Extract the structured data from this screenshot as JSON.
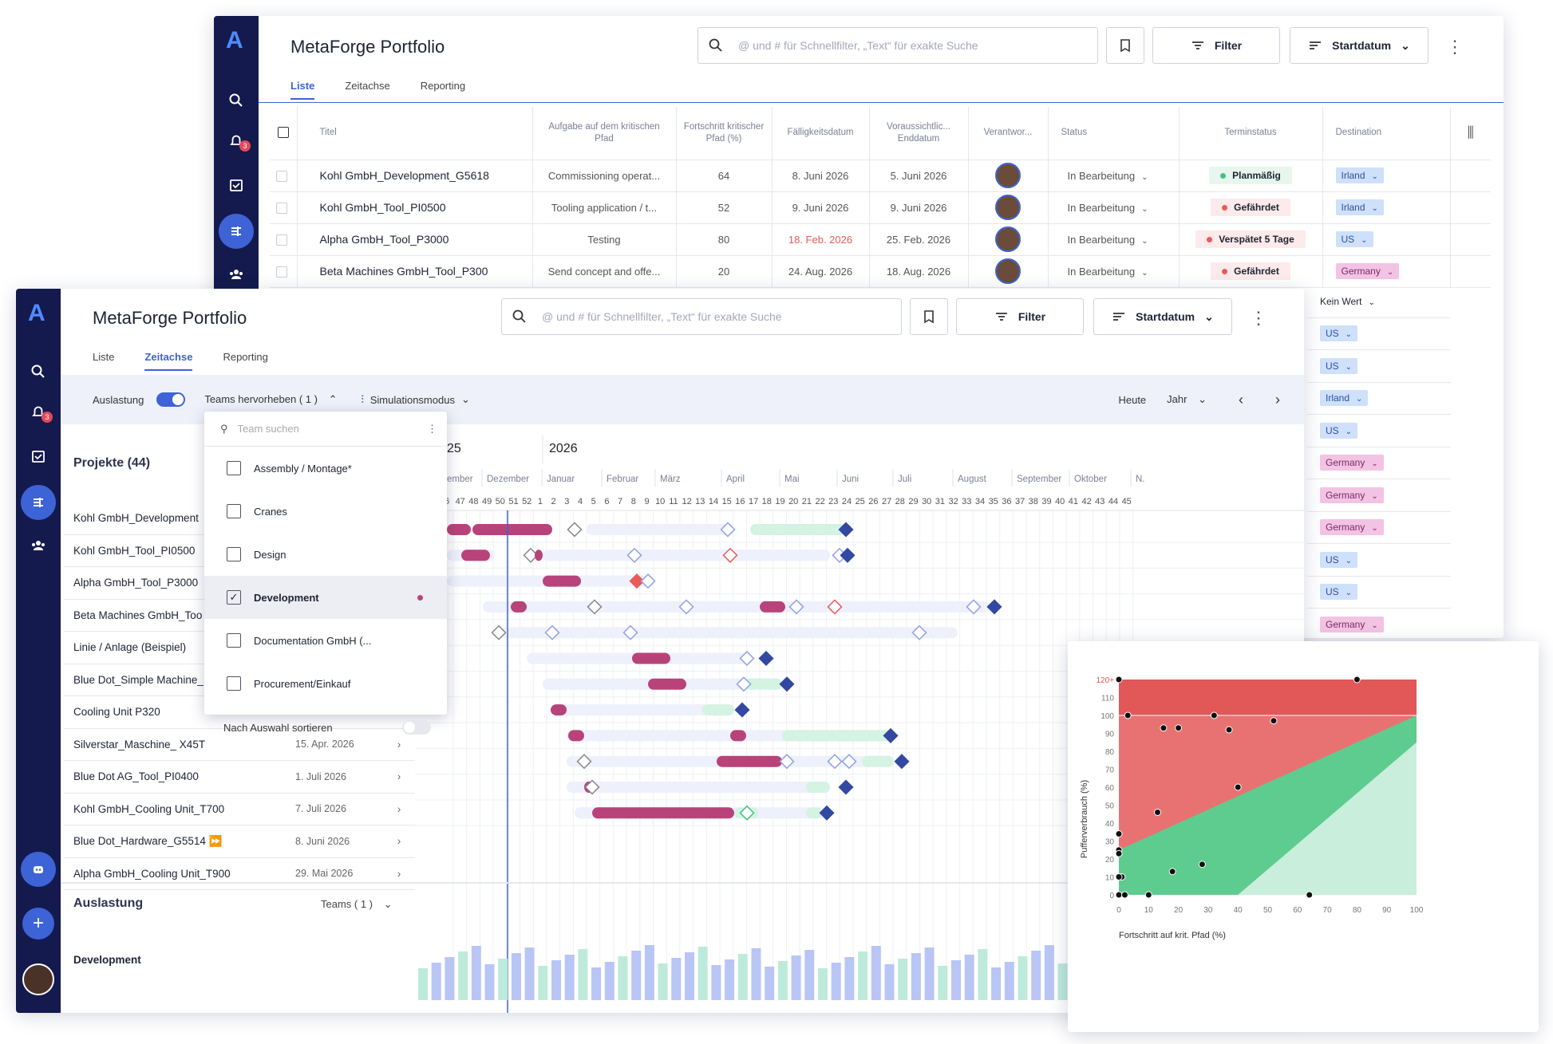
{
  "app": {
    "title": "MetaForge Portfolio",
    "search_placeholder": "@ und # für Schnellfilter, „Text“ für exakte Suche",
    "filter_label": "Filter",
    "sort_label": "Startdatum"
  },
  "back": {
    "tabs": [
      {
        "label": "Liste"
      },
      {
        "label": "Zeitachse"
      },
      {
        "label": "Reporting"
      }
    ],
    "columns": {
      "title": "Titel",
      "critical": "Aufgabe auf dem kritischen Pfad",
      "progress": "Fortschritt kritischer Pfad (%)",
      "due": "Fälligkeitsdatum",
      "end": "Voraussichtlic... Enddatum",
      "owner": "Verantwor...",
      "status": "Status",
      "schedule": "Terminstatus",
      "destination": "Destination"
    },
    "rows": [
      {
        "title": "Kohl GmbH_Development_G5618",
        "critical": "Commissioning operat...",
        "progress": "64",
        "due": "8. Juni 2026",
        "end": "5. Juni 2026",
        "status": "In Bearbeitung",
        "schedule": "Planmäßig",
        "schedule_color": "#3fc47f",
        "schedule_bg": "#e7f7ee",
        "dest": "Irland",
        "dest_type": "blue"
      },
      {
        "title": "Kohl GmbH_Tool_PI0500",
        "critical": "Tooling application / t...",
        "progress": "52",
        "due": "9. Juni 2026",
        "end": "9. Juni 2026",
        "status": "In Bearbeitung",
        "schedule": "Gefährdet",
        "schedule_color": "#e95a5a",
        "schedule_bg": "#fdeaea",
        "dest": "Irland",
        "dest_type": "blue"
      },
      {
        "title": "Alpha GmbH_Tool_P3000",
        "critical": "Testing",
        "progress": "80",
        "due": "18. Feb. 2026",
        "due_red": true,
        "end": "25. Feb. 2026",
        "status": "In Bearbeitung",
        "schedule": "Verspätet 5 Tage",
        "schedule_color": "#e95a5a",
        "schedule_bg": "#fdeaea",
        "dest": "US",
        "dest_type": "blue"
      },
      {
        "title": "Beta Machines GmbH_Tool_P300",
        "critical": "Send concept and offe...",
        "progress": "20",
        "due": "24. Aug. 2026",
        "end": "18. Aug. 2026",
        "status": "In Bearbeitung",
        "schedule": "Gefährdet",
        "schedule_color": "#e95a5a",
        "schedule_bg": "#fdeaea",
        "dest": "Germany",
        "dest_type": "pink"
      }
    ],
    "extra_dest": [
      {
        "label": "Kein Wert",
        "type": "none"
      },
      {
        "label": "US",
        "type": "blue"
      },
      {
        "label": "US",
        "type": "blue"
      },
      {
        "label": "Irland",
        "type": "blue"
      },
      {
        "label": "US",
        "type": "blue"
      },
      {
        "label": "Germany",
        "type": "pink"
      },
      {
        "label": "Germany",
        "type": "pink"
      },
      {
        "label": "Germany",
        "type": "pink"
      },
      {
        "label": "US",
        "type": "blue"
      },
      {
        "label": "US",
        "type": "blue"
      },
      {
        "label": "Germany",
        "type": "pink"
      }
    ]
  },
  "front": {
    "tabs": [
      {
        "label": "Liste"
      },
      {
        "label": "Zeitachse"
      },
      {
        "label": "Reporting"
      }
    ],
    "toolbar": {
      "utilization": "Auslastung",
      "teams": "Teams hervorheben ( 1 )",
      "simulation": "Simulationsmodus",
      "today": "Heute",
      "range": "Jahr"
    },
    "projects_header": "Projekte (44)",
    "years": [
      "25",
      "2026"
    ],
    "months": [
      "ember",
      "Dezember",
      "Januar",
      "Februar",
      "März",
      "April",
      "Mai",
      "Juni",
      "Juli",
      "August",
      "September",
      "Oktober",
      "N."
    ],
    "weeks": [
      "6",
      "47",
      "48",
      "49",
      "50",
      "51",
      "52",
      "1",
      "2",
      "3",
      "4",
      "5",
      "6",
      "7",
      "8",
      "9",
      "10",
      "11",
      "12",
      "13",
      "14",
      "15",
      "16",
      "17",
      "18",
      "19",
      "20",
      "21",
      "22",
      "23",
      "24",
      "25",
      "26",
      "27",
      "28",
      "29",
      "30",
      "31",
      "32",
      "33",
      "34",
      "35",
      "36",
      "37",
      "38",
      "39",
      "40",
      "41",
      "42",
      "43",
      "44",
      "45"
    ],
    "projects": [
      {
        "name": "Kohl GmbH_Development",
        "date": ""
      },
      {
        "name": "Kohl GmbH_Tool_PI0500",
        "date": ""
      },
      {
        "name": "Alpha GmbH_Tool_P3000",
        "date": ""
      },
      {
        "name": "Beta Machines GmbH_Too",
        "date": ""
      },
      {
        "name": "Linie / Anlage (Beispiel)",
        "date": ""
      },
      {
        "name": "Blue Dot_Simple Machine_",
        "date": ""
      },
      {
        "name": "Cooling Unit P320",
        "date": ""
      },
      {
        "name": "Silverstar_Maschine_ X45T",
        "date": "15. Apr. 2026"
      },
      {
        "name": "Blue Dot AG_Tool_PI0400",
        "date": "1. Juli 2026"
      },
      {
        "name": "Kohl GmbH_Cooling Unit_T700",
        "date": "7. Juli 2026"
      },
      {
        "name": "Blue Dot_Hardware_G5514 ⏩",
        "date": "8. Juni 2026"
      },
      {
        "name": "Alpha GmbH_Cooling Unit_T900",
        "date": "29. Mai 2026"
      }
    ],
    "utilization_header": "Auslastung",
    "teams_filter": "Teams ( 1 )",
    "team_row": "Development",
    "dropdown": {
      "search_placeholder": "Team suchen",
      "items": [
        {
          "label": "Assembly / Montage*",
          "checked": false
        },
        {
          "label": "Cranes",
          "checked": false
        },
        {
          "label": "Design",
          "checked": false
        },
        {
          "label": "Development",
          "checked": true
        },
        {
          "label": "Documentation GmbH (...",
          "checked": false
        },
        {
          "label": "Procurement/Einkauf",
          "checked": false
        }
      ],
      "sort_label": "Nach Auswahl sortieren"
    }
  },
  "chart_data": {
    "type": "scatter",
    "xlabel": "Fortschritt auf krit. Pfad (%)",
    "ylabel": "Pufferverbrauch (%)",
    "xlim": [
      0,
      100
    ],
    "ylim": [
      0,
      120
    ],
    "x_ticks": [
      "0",
      "10",
      "20",
      "30",
      "40",
      "50",
      "60",
      "70",
      "80",
      "90",
      "100"
    ],
    "y_ticks": [
      "0",
      "10",
      "20",
      "30",
      "40",
      "50",
      "60",
      "70",
      "80",
      "90",
      "100",
      "110",
      "120+"
    ],
    "zones": {
      "red_top": "#e25757",
      "red": "#e87272",
      "green": "#5ecb8f",
      "light_green": "#c9eedb"
    },
    "points": [
      {
        "x": 0,
        "y": 120
      },
      {
        "x": 80,
        "y": 120
      },
      {
        "x": 3,
        "y": 100
      },
      {
        "x": 32,
        "y": 100
      },
      {
        "x": 52,
        "y": 97
      },
      {
        "x": 15,
        "y": 93
      },
      {
        "x": 20,
        "y": 93
      },
      {
        "x": 37,
        "y": 92
      },
      {
        "x": 40,
        "y": 60
      },
      {
        "x": 13,
        "y": 46
      },
      {
        "x": 0,
        "y": 34
      },
      {
        "x": 0,
        "y": 25
      },
      {
        "x": 0,
        "y": 23
      },
      {
        "x": 28,
        "y": 17
      },
      {
        "x": 18,
        "y": 13
      },
      {
        "x": 1,
        "y": 10
      },
      {
        "x": 0,
        "y": 10
      },
      {
        "x": 0,
        "y": 0
      },
      {
        "x": 2,
        "y": 0
      },
      {
        "x": 10,
        "y": 0
      },
      {
        "x": 64,
        "y": 0
      }
    ]
  }
}
